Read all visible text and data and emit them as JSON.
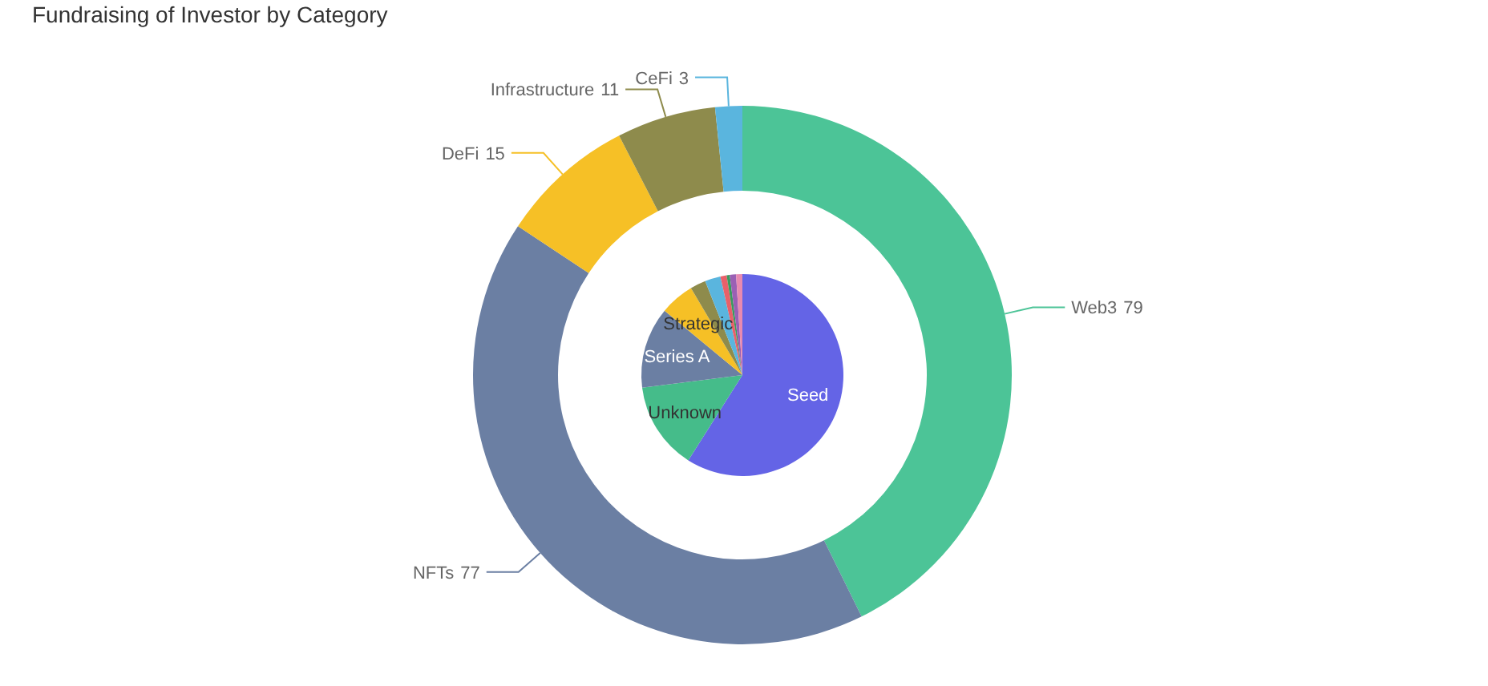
{
  "chart_data": [
    {
      "type": "donut",
      "title": "Fundraising of Investor by Category",
      "categories": [
        "Web3",
        "NFTs",
        "DeFi",
        "Infrastructure",
        "CeFi"
      ],
      "values": [
        79,
        77,
        15,
        11,
        3
      ],
      "colors": [
        "#4cc497",
        "#6b7fa3",
        "#f6c026",
        "#8e8b4c",
        "#5ab5de"
      ],
      "data_labels": true
    },
    {
      "type": "pie",
      "categories": [
        "Seed",
        "Unknown",
        "Series A",
        "Strategic",
        null,
        null,
        null,
        null,
        null,
        null
      ],
      "values": [
        59,
        14,
        13,
        5.5,
        2.5,
        2.5,
        1,
        0.5,
        1,
        1
      ],
      "colors": [
        "#6464e6",
        "#45bc8a",
        "#6b7fa3",
        "#f6c026",
        "#8e8b4c",
        "#5ab5de",
        "#e8606a",
        "#3a9a5e",
        "#9a60b4",
        "#e88ab0"
      ]
    }
  ]
}
